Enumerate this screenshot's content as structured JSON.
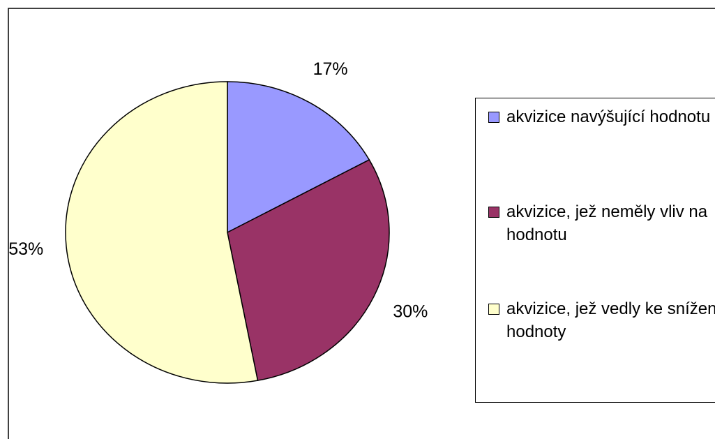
{
  "chart_data": {
    "type": "pie",
    "categories": [
      "akvizice navýšující hodnotu",
      "akvizice, jež neměly vliv na hodnotu",
      "akvizice, jež vedly ke snížení hodnoty"
    ],
    "values": [
      17,
      30,
      53
    ],
    "value_labels": [
      "17%",
      "30%",
      "53%"
    ],
    "colors": [
      "#9999ff",
      "#993366",
      "#ffffcc"
    ],
    "legend": "right"
  }
}
